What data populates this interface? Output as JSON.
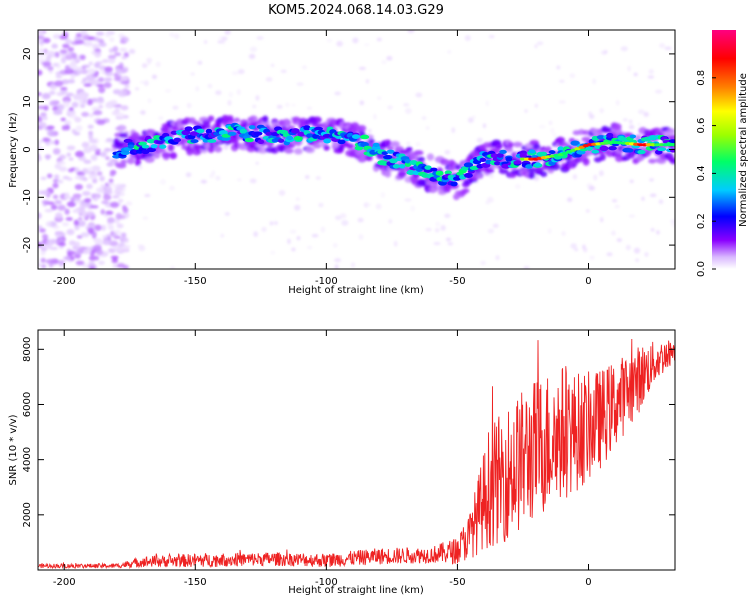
{
  "figure": {
    "title": "KOM5.2024.068.14.03.G29"
  },
  "chart_data": [
    {
      "type": "heatmap",
      "xlabel": "Height of straight line (km)",
      "ylabel": "Frequency (Hz)",
      "xlim": [
        -210,
        33
      ],
      "ylim": [
        -25,
        25
      ],
      "x_ticks": [
        -200,
        -150,
        -100,
        -50,
        0
      ],
      "y_ticks": [
        -20,
        -10,
        0,
        10,
        20
      ],
      "colorbar": {
        "label": "Normalized spectral amplitude",
        "range": [
          0,
          1
        ],
        "ticks": [
          "0.0",
          "0.2",
          "0.4",
          "0.6",
          "0.8"
        ],
        "tick_values": [
          0.0,
          0.2,
          0.4,
          0.6,
          0.8
        ],
        "colormap": [
          "#ffffff",
          "#d9b8ff",
          "#8a00ff",
          "#0000ff",
          "#00ccff",
          "#00ff66",
          "#9cff00",
          "#ffff00",
          "#ff8000",
          "#ff0000",
          "#ff0080"
        ]
      },
      "ridge": {
        "description_hidden": "",
        "points": [
          [
            -178,
            0.0
          ],
          [
            -165,
            1.5
          ],
          [
            -150,
            3.0
          ],
          [
            -135,
            3.5
          ],
          [
            -120,
            3.0
          ],
          [
            -105,
            3.0
          ],
          [
            -95,
            3.0
          ],
          [
            -88,
            2.0
          ],
          [
            -80,
            -1.0
          ],
          [
            -70,
            -3.0
          ],
          [
            -60,
            -5.0
          ],
          [
            -50,
            -6.5
          ],
          [
            -44,
            -4.0
          ],
          [
            -40,
            -2.0
          ],
          [
            -30,
            -2.0
          ],
          [
            -20,
            -2.0
          ],
          [
            -10,
            -1.0
          ],
          [
            0,
            1.0
          ],
          [
            10,
            1.5
          ],
          [
            20,
            1.0
          ],
          [
            33,
            1.0
          ]
        ],
        "peak_amplitude_x": [
          -20,
          0,
          20
        ],
        "peak_amplitude_value": 0.9
      }
    },
    {
      "type": "line",
      "xlabel": "Height of straight line (km)",
      "ylabel": "SNR (10 * v/v)",
      "xlim": [
        -210,
        33
      ],
      "ylim": [
        0,
        8700
      ],
      "x_ticks": [
        -200,
        -150,
        -100,
        -50,
        0
      ],
      "y_ticks": [
        2000,
        4000,
        6000,
        8000
      ],
      "series": [
        {
          "color": "#ee2222",
          "envelope": {
            "x": [
              -210,
              -180,
              -170,
              -150,
              -120,
              -100,
              -80,
              -60,
              -50,
              -45,
              -40,
              -38,
              -35,
              -30,
              -25,
              -20,
              -15,
              -10,
              -5,
              0,
              5,
              10,
              20,
              25,
              33
            ],
            "mean": [
              150,
              150,
              300,
              350,
              400,
              350,
              500,
              550,
              700,
              1300,
              2500,
              3000,
              3200,
              3600,
              4000,
              4400,
              4700,
              5000,
              5000,
              5200,
              5500,
              6000,
              7000,
              7500,
              8000
            ],
            "spread": [
              80,
              80,
              200,
              250,
              250,
              250,
              300,
              300,
              500,
              900,
              1800,
              2200,
              2300,
              2500,
              2600,
              2600,
              2600,
              2500,
              2200,
              2000,
              1800,
              1600,
              1200,
              800,
              400
            ]
          }
        }
      ]
    }
  ]
}
